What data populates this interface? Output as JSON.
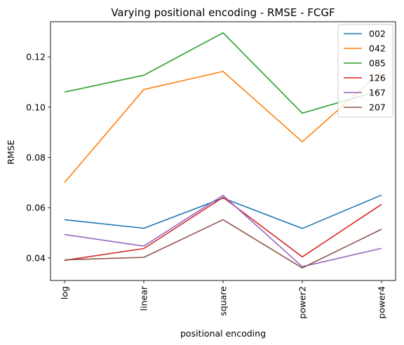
{
  "chart_data": {
    "type": "line",
    "title": "Varying positional encoding - RMSE - FCGF",
    "xlabel": "positional encoding",
    "ylabel": "RMSE",
    "categories": [
      "log",
      "linear",
      "square",
      "power2",
      "power4"
    ],
    "ylim": [
      0.031,
      0.134
    ],
    "yticks": [
      0.04,
      0.06,
      0.08,
      0.1,
      0.12
    ],
    "ytick_labels": [
      "0.04",
      "0.06",
      "0.08",
      "0.10",
      "0.12"
    ],
    "grid": false,
    "legend_position": "top-right",
    "series": [
      {
        "name": "002",
        "color": "#1f77b4",
        "values": [
          0.0552,
          0.0518,
          0.0638,
          0.0517,
          0.065
        ]
      },
      {
        "name": "042",
        "color": "#ff7f0e",
        "values": [
          0.07,
          0.107,
          0.1142,
          0.0862,
          0.1143
        ]
      },
      {
        "name": "085",
        "color": "#2ca02c",
        "values": [
          0.106,
          0.1127,
          0.1296,
          0.0976,
          0.1068
        ]
      },
      {
        "name": "126",
        "color": "#d62728",
        "values": [
          0.039,
          0.0437,
          0.0641,
          0.0404,
          0.0613
        ]
      },
      {
        "name": "167",
        "color": "#9467bd",
        "values": [
          0.0493,
          0.0447,
          0.0649,
          0.0365,
          0.0438
        ]
      },
      {
        "name": "207",
        "color": "#8c564b",
        "values": [
          0.0392,
          0.0402,
          0.0552,
          0.036,
          0.0514
        ]
      }
    ]
  }
}
